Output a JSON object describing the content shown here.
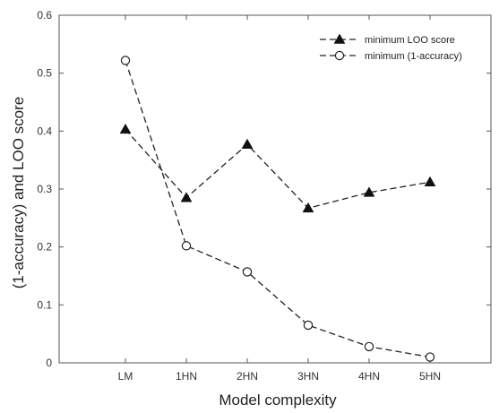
{
  "chart_data": {
    "type": "line",
    "title": "",
    "xlabel": "Model complexity",
    "ylabel": "(1-accuracy) and LOO score",
    "categories": [
      "LM",
      "1HN",
      "2HN",
      "3HN",
      "4HN",
      "5HN"
    ],
    "ylim": [
      0,
      0.6
    ],
    "yticks": [
      "0",
      "0.1",
      "0.2",
      "0.3",
      "0.4",
      "0.5",
      "0.6"
    ],
    "grid": false,
    "legend": "top-right",
    "series": [
      {
        "name": "minimum LOO score",
        "marker": "filled-triangle",
        "line": "dashed",
        "color": "#222222",
        "values": [
          0.403,
          0.285,
          0.377,
          0.267,
          0.294,
          0.312
        ]
      },
      {
        "name": "minimum (1-accuracy)",
        "marker": "open-circle",
        "line": "dashed",
        "color": "#222222",
        "values": [
          0.522,
          0.202,
          0.157,
          0.065,
          0.028,
          0.01
        ]
      }
    ]
  }
}
